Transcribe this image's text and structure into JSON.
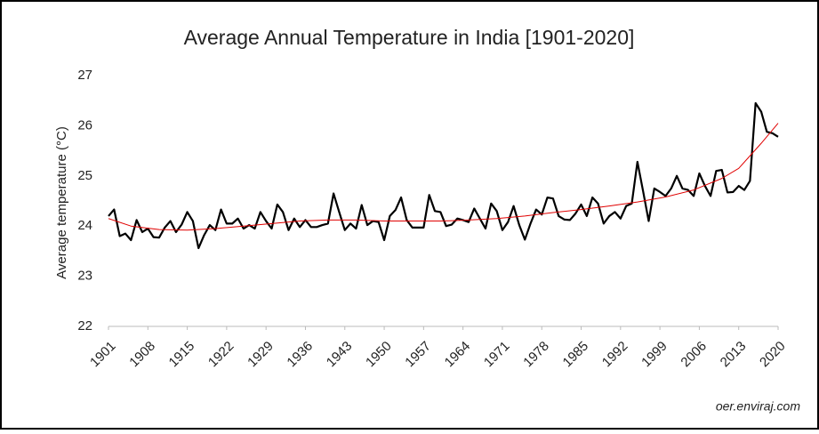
{
  "chart_data": {
    "type": "line",
    "title": "Average Annual Temperature in India [1901-2020]",
    "ylabel": "Average temperature (°C)",
    "source": "oer.enviraj.com",
    "x": [
      1901,
      1902,
      1903,
      1904,
      1905,
      1906,
      1907,
      1908,
      1909,
      1910,
      1911,
      1912,
      1913,
      1914,
      1915,
      1916,
      1917,
      1918,
      1919,
      1920,
      1921,
      1922,
      1923,
      1924,
      1925,
      1926,
      1927,
      1928,
      1929,
      1930,
      1931,
      1932,
      1933,
      1934,
      1935,
      1936,
      1937,
      1938,
      1939,
      1940,
      1941,
      1942,
      1943,
      1944,
      1945,
      1946,
      1947,
      1948,
      1949,
      1950,
      1951,
      1952,
      1953,
      1954,
      1955,
      1956,
      1957,
      1958,
      1959,
      1960,
      1961,
      1962,
      1963,
      1964,
      1965,
      1966,
      1967,
      1968,
      1969,
      1970,
      1971,
      1972,
      1973,
      1974,
      1975,
      1976,
      1977,
      1978,
      1979,
      1980,
      1981,
      1982,
      1983,
      1984,
      1985,
      1986,
      1987,
      1988,
      1989,
      1990,
      1991,
      1992,
      1993,
      1994,
      1995,
      1996,
      1997,
      1998,
      1999,
      2000,
      2001,
      2002,
      2003,
      2004,
      2005,
      2006,
      2007,
      2008,
      2009,
      2010,
      2011,
      2012,
      2013,
      2014,
      2015,
      2016,
      2017,
      2018,
      2019,
      2020
    ],
    "series": [
      {
        "color": "#000000",
        "values": [
          24.2,
          24.33,
          23.8,
          23.85,
          23.72,
          24.12,
          23.88,
          23.95,
          23.78,
          23.77,
          23.97,
          24.1,
          23.88,
          24.03,
          24.28,
          24.1,
          23.56,
          23.82,
          24.02,
          23.92,
          24.33,
          24.05,
          24.05,
          24.15,
          23.95,
          24.02,
          23.95,
          24.28,
          24.1,
          23.95,
          24.43,
          24.28,
          23.92,
          24.15,
          23.98,
          24.12,
          23.98,
          23.98,
          24.02,
          24.05,
          24.65,
          24.28,
          23.92,
          24.05,
          23.95,
          24.42,
          24.02,
          24.1,
          24.08,
          23.72,
          24.2,
          24.32,
          24.57,
          24.12,
          23.97,
          23.97,
          23.97,
          24.62,
          24.3,
          24.28,
          24.0,
          24.03,
          24.15,
          24.12,
          24.08,
          24.35,
          24.15,
          23.95,
          24.45,
          24.3,
          23.92,
          24.08,
          24.4,
          24.02,
          23.73,
          24.05,
          24.33,
          24.23,
          24.57,
          24.55,
          24.2,
          24.13,
          24.12,
          24.25,
          24.43,
          24.2,
          24.57,
          24.45,
          24.05,
          24.2,
          24.28,
          24.15,
          24.4,
          24.45,
          25.28,
          24.7,
          24.1,
          24.75,
          24.68,
          24.6,
          24.75,
          25.0,
          24.75,
          24.72,
          24.6,
          25.05,
          24.8,
          24.6,
          25.1,
          25.12,
          24.67,
          24.68,
          24.8,
          24.72,
          24.9,
          26.45,
          26.28,
          25.88,
          25.85,
          25.78
        ]
      },
      {
        "color": "#e00000",
        "x": [
          1901,
          1905,
          1910,
          1915,
          1920,
          1925,
          1930,
          1935,
          1940,
          1945,
          1950,
          1955,
          1960,
          1965,
          1970,
          1975,
          1980,
          1985,
          1990,
          1995,
          2000,
          2005,
          2010,
          2013,
          2015,
          2017,
          2020
        ],
        "values": [
          24.15,
          24.0,
          23.93,
          23.92,
          23.95,
          24.0,
          24.05,
          24.1,
          24.12,
          24.12,
          24.1,
          24.1,
          24.1,
          24.12,
          24.15,
          24.2,
          24.27,
          24.33,
          24.4,
          24.48,
          24.58,
          24.72,
          24.95,
          25.15,
          25.4,
          25.65,
          26.05
        ]
      }
    ],
    "xlim": [
      1901,
      2020
    ],
    "xticks": [
      1901,
      1908,
      1915,
      1922,
      1929,
      1936,
      1943,
      1950,
      1957,
      1964,
      1971,
      1978,
      1985,
      1992,
      1999,
      2006,
      2013,
      2020
    ],
    "ylim": [
      22,
      27
    ],
    "yticks": [
      22,
      23,
      24,
      25,
      26,
      27
    ],
    "grid": false
  }
}
